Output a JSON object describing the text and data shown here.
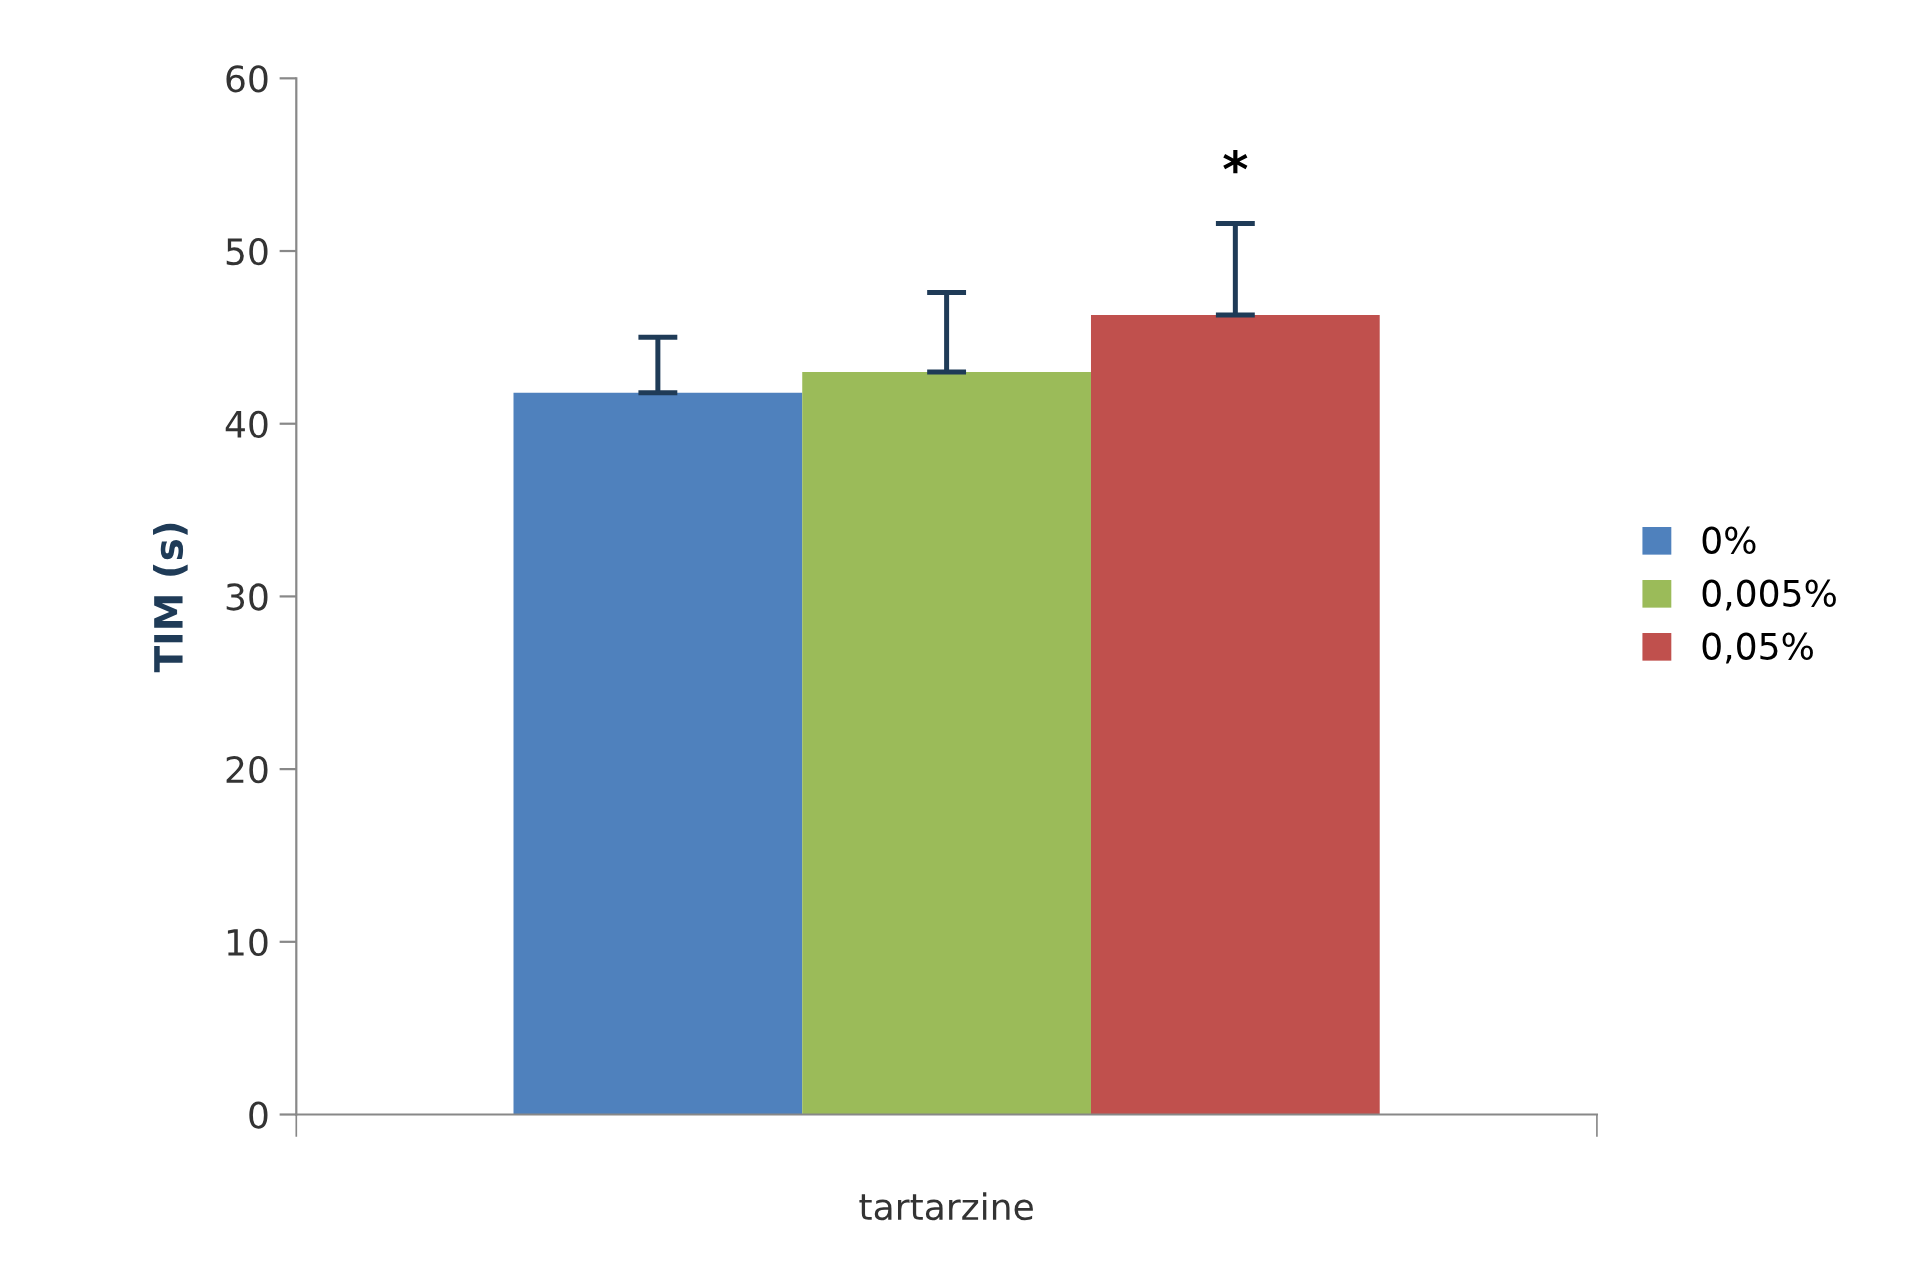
{
  "chart_data": {
    "type": "bar",
    "ylabel": "TIM (s)",
    "categories": [
      "tartarzine"
    ],
    "series": [
      {
        "name": "0%",
        "color": "#4f81bd",
        "values": [
          41.8
        ],
        "errors": [
          [
            41.8,
            45.0
          ]
        ]
      },
      {
        "name": "0,005%",
        "color": "#9bbb59",
        "values": [
          43.0
        ],
        "errors": [
          [
            43.0,
            47.6
          ]
        ]
      },
      {
        "name": "0,05%",
        "color": "#c0504d",
        "values": [
          46.3
        ],
        "errors": [
          [
            46.3,
            51.6
          ]
        ]
      }
    ],
    "ylim": [
      0,
      60
    ],
    "yticks": [
      0,
      10,
      20,
      30,
      40,
      50,
      60
    ],
    "grid": false,
    "legend": "right",
    "annotations": [
      "*"
    ]
  }
}
